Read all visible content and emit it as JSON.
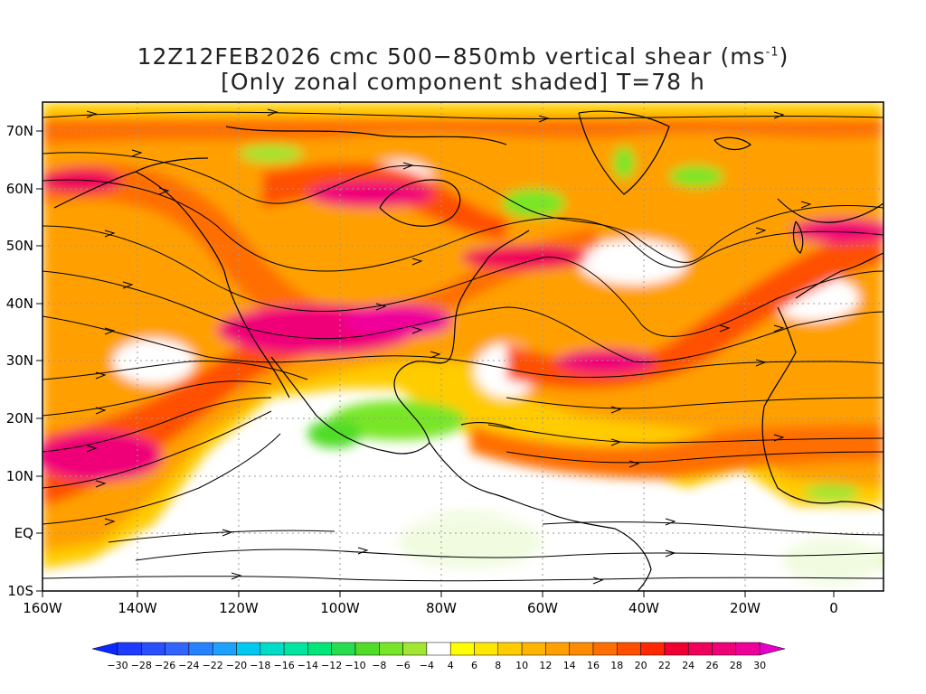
{
  "title_line1": "12Z12FEB2026 cmc 500−850mb vertical shear (ms",
  "title_sup": "-1",
  "title_line1_end": ")",
  "title_line2": "[Only zonal component shaded] T=78 h",
  "lat_labels": [
    "70N",
    "60N",
    "50N",
    "40N",
    "30N",
    "20N",
    "10N",
    "EQ",
    "10S"
  ],
  "lon_labels": [
    "160W",
    "140W",
    "120W",
    "100W",
    "80W",
    "60W",
    "40W",
    "20W",
    "0"
  ],
  "colorbar": {
    "labels": [
      "-30",
      "-28",
      "-26",
      "-24",
      "-22",
      "-20",
      "-18",
      "-16",
      "-14",
      "-12",
      "-10",
      "-8",
      "-6",
      "-4",
      "4",
      "6",
      "8",
      "10",
      "12",
      "14",
      "16",
      "18",
      "20",
      "22",
      "24",
      "26",
      "28",
      "30"
    ],
    "colors": [
      "#1e3cff",
      "#2850ff",
      "#3264ff",
      "#2882ff",
      "#1ea0ff",
      "#00c8f0",
      "#00dcc8",
      "#00e6a0",
      "#00e678",
      "#28dc50",
      "#50dc28",
      "#78e628",
      "#a0e632",
      "#ffffff",
      "#ffff00",
      "#ffe600",
      "#ffcc00",
      "#ffb400",
      "#ffa000",
      "#ff8c00",
      "#ff6e00",
      "#ff5000",
      "#ff2800",
      "#f00032",
      "#f0005a",
      "#f00078",
      "#f0009b"
    ],
    "end_low": "#0a28ff",
    "end_high": "#e600c8"
  },
  "colors": {
    "frame": "#000000",
    "grid": "#999999",
    "streamline": "#000000",
    "coast": "#000000"
  }
}
